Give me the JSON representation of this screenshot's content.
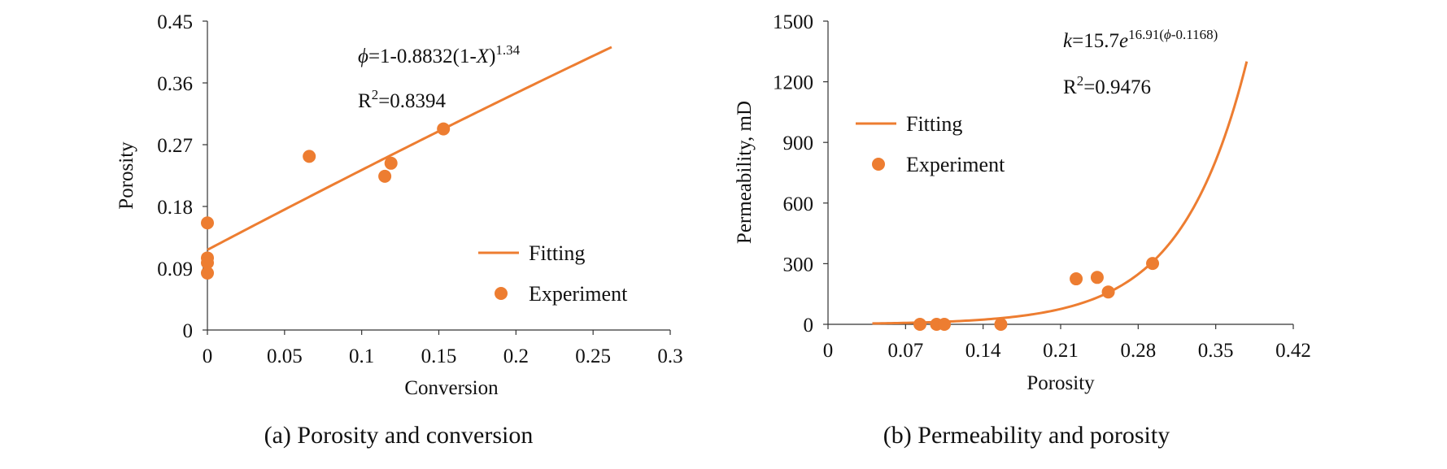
{
  "accent_color": "#ED7D31",
  "chart_data": [
    {
      "type": "scatter",
      "title": "",
      "caption": "(a) Porosity and conversion",
      "xlabel": "Conversion",
      "ylabel": "Porosity",
      "xlim": [
        0,
        0.3
      ],
      "ylim": [
        0,
        0.45
      ],
      "xticks": [
        "0",
        "0.05",
        "0.1",
        "0.15",
        "0.2",
        "0.25",
        "0.3"
      ],
      "yticks": [
        "0",
        "0.09",
        "0.18",
        "0.27",
        "0.36",
        "0.45"
      ],
      "legend": {
        "position": "bottom-right",
        "fit_label": "Fitting",
        "exp_label": "Experiment"
      },
      "equation": {
        "phi": "ϕ",
        "rest": "=1-0.8832(1-",
        "var": "X",
        "close": ")",
        "exp": "1.34"
      },
      "r2": {
        "r": "R",
        "sup": "2",
        "rest": "=0.8394"
      },
      "series": [
        {
          "name": "Experiment",
          "x": [
            0,
            0,
            0,
            0,
            0.066,
            0.115,
            0.119,
            0.153
          ],
          "y": [
            0.156,
            0.105,
            0.098,
            0.083,
            0.253,
            0.224,
            0.243,
            0.293
          ]
        },
        {
          "name": "Fitting",
          "x_range": [
            0,
            0.262
          ],
          "equation_params": {
            "a": 0.8832,
            "n": 1.34
          }
        }
      ]
    },
    {
      "type": "scatter",
      "title": "",
      "caption": "(b) Permeability and porosity",
      "xlabel": "Porosity",
      "ylabel": "Permeability, mD",
      "xlim": [
        0,
        0.42
      ],
      "ylim": [
        0,
        1500
      ],
      "xticks": [
        "0",
        "0.07",
        "0.14",
        "0.21",
        "0.28",
        "0.35",
        "0.42"
      ],
      "yticks": [
        "0",
        "300",
        "600",
        "900",
        "1200",
        "1500"
      ],
      "legend": {
        "position": "top-left",
        "fit_label": "Fitting",
        "exp_label": "Experiment"
      },
      "equation": {
        "k": "k",
        "mid": "=15.7",
        "e": "e",
        "exp_a": "16.91(",
        "exp_phi": "ϕ",
        "exp_b": "-0.1168)"
      },
      "r2": {
        "r": "R",
        "sup": "2",
        "rest": "=0.9476"
      },
      "series": [
        {
          "name": "Experiment",
          "x": [
            0.083,
            0.098,
            0.105,
            0.156,
            0.224,
            0.243,
            0.253,
            0.293
          ],
          "y": [
            0,
            0,
            0,
            0,
            225,
            232,
            160,
            301
          ]
        },
        {
          "name": "Fitting",
          "x_range": [
            0.04,
            0.378
          ],
          "equation_params": {
            "k0": 15.7,
            "b": 16.91,
            "phi0": 0.1168
          }
        }
      ]
    }
  ]
}
